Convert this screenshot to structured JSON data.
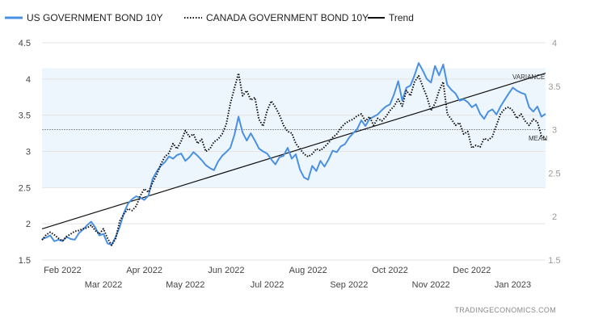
{
  "chart_data": {
    "type": "line",
    "title": "",
    "xlabel": "",
    "ylabel": "",
    "x_ticks": [
      {
        "label": "Feb 2022",
        "t": 0.5,
        "row": 0
      },
      {
        "label": "Mar 2022",
        "t": 1.5,
        "row": 1
      },
      {
        "label": "Apr 2022",
        "t": 2.5,
        "row": 0
      },
      {
        "label": "May 2022",
        "t": 3.5,
        "row": 1
      },
      {
        "label": "Jun 2022",
        "t": 4.5,
        "row": 0
      },
      {
        "label": "Jul 2022",
        "t": 5.5,
        "row": 1
      },
      {
        "label": "Aug 2022",
        "t": 6.5,
        "row": 0
      },
      {
        "label": "Sep 2022",
        "t": 7.5,
        "row": 1
      },
      {
        "label": "Oct 2022",
        "t": 8.5,
        "row": 0
      },
      {
        "label": "Nov 2022",
        "t": 9.5,
        "row": 1
      },
      {
        "label": "Dec 2022",
        "t": 10.5,
        "row": 0
      },
      {
        "label": "Jan 2023",
        "t": 11.5,
        "row": 1
      }
    ],
    "x_range": [
      0,
      12.3
    ],
    "y_left": {
      "min": 1.5,
      "max": 4.5,
      "ticks": [
        "1.5",
        "2",
        "2.5",
        "3",
        "3.5",
        "4",
        "4.5"
      ]
    },
    "y_right": {
      "min": 1.5,
      "max": 4,
      "ticks": [
        "1.5",
        "2",
        "2.5",
        "3",
        "3.5",
        "4"
      ]
    },
    "band": {
      "min": 2.5,
      "max": 4.15
    },
    "mean": 3.3,
    "legend": {
      "us": "US GOVERNMENT BOND 10Y",
      "ca": "CANADA GOVERNMENT BOND 10Y",
      "trend": "Trend"
    },
    "annotations": {
      "variance": "VARIANCE",
      "mean": "MEAN"
    },
    "source": "TRADINGECONOMICS.COM",
    "colors": {
      "us": "#4a90e2",
      "ca": "#111111",
      "trend": "#111111",
      "band": "#eef6fd",
      "mean": "#777777"
    },
    "trend": [
      {
        "t": 0,
        "y": 1.93
      },
      {
        "t": 12.3,
        "y": 4.08
      }
    ],
    "series": [
      {
        "name": "US GOVERNMENT BOND 10Y",
        "axis": "left",
        "style": "solid",
        "points": [
          [
            0.0,
            1.79
          ],
          [
            0.1,
            1.81
          ],
          [
            0.2,
            1.84
          ],
          [
            0.3,
            1.76
          ],
          [
            0.4,
            1.78
          ],
          [
            0.5,
            1.76
          ],
          [
            0.6,
            1.82
          ],
          [
            0.7,
            1.79
          ],
          [
            0.8,
            1.78
          ],
          [
            0.9,
            1.87
          ],
          [
            1.0,
            1.92
          ],
          [
            1.1,
            1.98
          ],
          [
            1.2,
            2.03
          ],
          [
            1.3,
            1.95
          ],
          [
            1.4,
            1.84
          ],
          [
            1.5,
            1.86
          ],
          [
            1.6,
            1.73
          ],
          [
            1.7,
            1.71
          ],
          [
            1.8,
            1.82
          ],
          [
            1.9,
            1.96
          ],
          [
            2.0,
            2.15
          ],
          [
            2.1,
            2.28
          ],
          [
            2.2,
            2.34
          ],
          [
            2.3,
            2.38
          ],
          [
            2.4,
            2.36
          ],
          [
            2.5,
            2.33
          ],
          [
            2.6,
            2.39
          ],
          [
            2.7,
            2.62
          ],
          [
            2.8,
            2.72
          ],
          [
            2.9,
            2.8
          ],
          [
            3.0,
            2.85
          ],
          [
            3.1,
            2.93
          ],
          [
            3.2,
            2.9
          ],
          [
            3.3,
            2.95
          ],
          [
            3.4,
            2.97
          ],
          [
            3.5,
            2.87
          ],
          [
            3.6,
            2.92
          ],
          [
            3.7,
            2.99
          ],
          [
            3.8,
            2.94
          ],
          [
            3.9,
            2.88
          ],
          [
            4.0,
            2.81
          ],
          [
            4.1,
            2.77
          ],
          [
            4.2,
            2.74
          ],
          [
            4.3,
            2.86
          ],
          [
            4.4,
            2.94
          ],
          [
            4.5,
            2.99
          ],
          [
            4.6,
            3.05
          ],
          [
            4.7,
            3.23
          ],
          [
            4.8,
            3.48
          ],
          [
            4.9,
            3.26
          ],
          [
            5.0,
            3.15
          ],
          [
            5.1,
            3.25
          ],
          [
            5.2,
            3.15
          ],
          [
            5.3,
            3.04
          ],
          [
            5.4,
            3.0
          ],
          [
            5.5,
            2.97
          ],
          [
            5.6,
            2.89
          ],
          [
            5.7,
            2.82
          ],
          [
            5.8,
            2.92
          ],
          [
            5.9,
            2.94
          ],
          [
            6.0,
            3.05
          ],
          [
            6.1,
            2.9
          ],
          [
            6.2,
            2.96
          ],
          [
            6.3,
            2.75
          ],
          [
            6.4,
            2.64
          ],
          [
            6.5,
            2.61
          ],
          [
            6.6,
            2.8
          ],
          [
            6.7,
            2.73
          ],
          [
            6.8,
            2.87
          ],
          [
            6.9,
            2.79
          ],
          [
            7.0,
            2.89
          ],
          [
            7.1,
            3.01
          ],
          [
            7.2,
            2.99
          ],
          [
            7.3,
            3.07
          ],
          [
            7.4,
            3.1
          ],
          [
            7.5,
            3.19
          ],
          [
            7.6,
            3.25
          ],
          [
            7.7,
            3.31
          ],
          [
            7.8,
            3.43
          ],
          [
            7.9,
            3.35
          ],
          [
            8.0,
            3.45
          ],
          [
            8.1,
            3.48
          ],
          [
            8.2,
            3.51
          ],
          [
            8.3,
            3.57
          ],
          [
            8.4,
            3.62
          ],
          [
            8.5,
            3.65
          ],
          [
            8.6,
            3.79
          ],
          [
            8.7,
            3.97
          ],
          [
            8.8,
            3.7
          ],
          [
            8.9,
            3.88
          ],
          [
            9.0,
            3.91
          ],
          [
            9.1,
            4.05
          ],
          [
            9.2,
            4.22
          ],
          [
            9.3,
            4.12
          ],
          [
            9.4,
            4.0
          ],
          [
            9.5,
            3.95
          ],
          [
            9.6,
            4.18
          ],
          [
            9.7,
            4.05
          ],
          [
            9.8,
            4.2
          ],
          [
            9.9,
            3.92
          ],
          [
            10.0,
            3.85
          ],
          [
            10.1,
            3.8
          ],
          [
            10.2,
            3.7
          ],
          [
            10.3,
            3.72
          ],
          [
            10.4,
            3.68
          ],
          [
            10.5,
            3.61
          ],
          [
            10.6,
            3.65
          ],
          [
            10.7,
            3.52
          ],
          [
            10.8,
            3.45
          ],
          [
            10.9,
            3.55
          ],
          [
            11.0,
            3.58
          ],
          [
            11.1,
            3.51
          ],
          [
            11.2,
            3.62
          ],
          [
            11.3,
            3.71
          ],
          [
            11.4,
            3.8
          ],
          [
            11.5,
            3.88
          ],
          [
            11.6,
            3.84
          ],
          [
            11.7,
            3.81
          ],
          [
            11.8,
            3.79
          ],
          [
            11.9,
            3.61
          ],
          [
            12.0,
            3.55
          ],
          [
            12.1,
            3.62
          ],
          [
            12.2,
            3.48
          ],
          [
            12.3,
            3.52
          ]
        ]
      },
      {
        "name": "CANADA GOVERNMENT BOND 10Y",
        "axis": "right",
        "style": "dotted",
        "points": [
          [
            0.0,
            1.73
          ],
          [
            0.1,
            1.79
          ],
          [
            0.2,
            1.82
          ],
          [
            0.3,
            1.79
          ],
          [
            0.4,
            1.75
          ],
          [
            0.5,
            1.72
          ],
          [
            0.6,
            1.77
          ],
          [
            0.7,
            1.8
          ],
          [
            0.8,
            1.83
          ],
          [
            0.9,
            1.84
          ],
          [
            1.0,
            1.86
          ],
          [
            1.1,
            1.87
          ],
          [
            1.2,
            1.9
          ],
          [
            1.3,
            1.84
          ],
          [
            1.4,
            1.8
          ],
          [
            1.5,
            1.86
          ],
          [
            1.6,
            1.75
          ],
          [
            1.7,
            1.67
          ],
          [
            1.8,
            1.75
          ],
          [
            1.9,
            1.95
          ],
          [
            2.0,
            2.03
          ],
          [
            2.1,
            2.09
          ],
          [
            2.2,
            2.07
          ],
          [
            2.3,
            2.12
          ],
          [
            2.4,
            2.24
          ],
          [
            2.5,
            2.32
          ],
          [
            2.6,
            2.28
          ],
          [
            2.7,
            2.39
          ],
          [
            2.8,
            2.48
          ],
          [
            2.9,
            2.6
          ],
          [
            3.0,
            2.69
          ],
          [
            3.1,
            2.73
          ],
          [
            3.2,
            2.84
          ],
          [
            3.3,
            2.78
          ],
          [
            3.4,
            2.87
          ],
          [
            3.5,
            2.99
          ],
          [
            3.6,
            2.92
          ],
          [
            3.7,
            2.95
          ],
          [
            3.8,
            2.84
          ],
          [
            3.9,
            2.89
          ],
          [
            4.0,
            2.75
          ],
          [
            4.1,
            2.78
          ],
          [
            4.2,
            2.86
          ],
          [
            4.3,
            2.89
          ],
          [
            4.4,
            2.95
          ],
          [
            4.5,
            3.06
          ],
          [
            4.6,
            3.3
          ],
          [
            4.7,
            3.48
          ],
          [
            4.8,
            3.65
          ],
          [
            4.9,
            3.39
          ],
          [
            5.0,
            3.45
          ],
          [
            5.1,
            3.34
          ],
          [
            5.2,
            3.37
          ],
          [
            5.3,
            3.12
          ],
          [
            5.4,
            3.04
          ],
          [
            5.5,
            3.22
          ],
          [
            5.6,
            3.33
          ],
          [
            5.7,
            3.26
          ],
          [
            5.8,
            3.17
          ],
          [
            5.9,
            3.05
          ],
          [
            6.0,
            2.98
          ],
          [
            6.1,
            2.96
          ],
          [
            6.2,
            2.84
          ],
          [
            6.3,
            2.78
          ],
          [
            6.4,
            2.72
          ],
          [
            6.5,
            2.69
          ],
          [
            6.6,
            2.72
          ],
          [
            6.7,
            2.78
          ],
          [
            6.8,
            2.76
          ],
          [
            6.9,
            2.8
          ],
          [
            7.0,
            2.85
          ],
          [
            7.1,
            2.91
          ],
          [
            7.2,
            2.95
          ],
          [
            7.3,
            3.02
          ],
          [
            7.4,
            3.07
          ],
          [
            7.5,
            3.1
          ],
          [
            7.6,
            3.12
          ],
          [
            7.7,
            3.16
          ],
          [
            7.8,
            3.18
          ],
          [
            7.9,
            3.1
          ],
          [
            8.0,
            3.15
          ],
          [
            8.1,
            3.05
          ],
          [
            8.2,
            3.13
          ],
          [
            8.3,
            3.1
          ],
          [
            8.4,
            3.15
          ],
          [
            8.5,
            3.22
          ],
          [
            8.6,
            3.27
          ],
          [
            8.7,
            3.35
          ],
          [
            8.8,
            3.27
          ],
          [
            8.9,
            3.45
          ],
          [
            9.0,
            3.39
          ],
          [
            9.1,
            3.55
          ],
          [
            9.2,
            3.62
          ],
          [
            9.3,
            3.5
          ],
          [
            9.4,
            3.38
          ],
          [
            9.5,
            3.22
          ],
          [
            9.6,
            3.3
          ],
          [
            9.7,
            3.45
          ],
          [
            9.8,
            3.55
          ],
          [
            9.9,
            3.18
          ],
          [
            10.0,
            3.12
          ],
          [
            10.1,
            3.05
          ],
          [
            10.2,
            3.08
          ],
          [
            10.3,
            2.95
          ],
          [
            10.4,
            2.98
          ],
          [
            10.5,
            2.79
          ],
          [
            10.6,
            2.82
          ],
          [
            10.7,
            2.8
          ],
          [
            10.8,
            2.9
          ],
          [
            10.9,
            2.88
          ],
          [
            11.0,
            2.92
          ],
          [
            11.1,
            3.05
          ],
          [
            11.2,
            3.18
          ],
          [
            11.3,
            3.24
          ],
          [
            11.4,
            3.26
          ],
          [
            11.5,
            3.22
          ],
          [
            11.6,
            3.13
          ],
          [
            11.7,
            3.18
          ],
          [
            11.8,
            3.1
          ],
          [
            11.9,
            3.05
          ],
          [
            12.0,
            3.12
          ],
          [
            12.1,
            3.09
          ],
          [
            12.2,
            2.93
          ],
          [
            12.3,
            2.88
          ]
        ]
      }
    ]
  }
}
